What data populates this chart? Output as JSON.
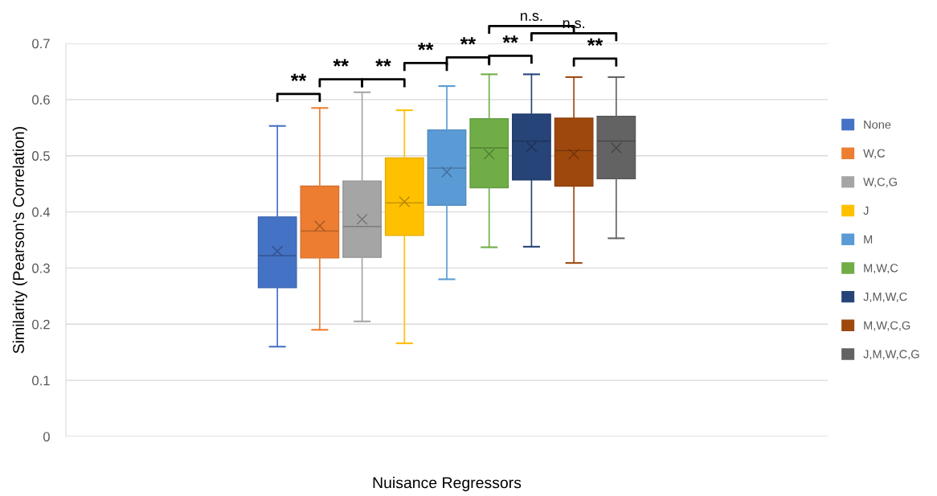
{
  "chart_data": {
    "type": "box",
    "xlabel": "Nuisance Regressors",
    "ylabel": "Similarity (Pearson's Correlation)",
    "categories": [
      null
    ],
    "ylim": [
      0,
      0.7
    ],
    "yticks": [
      0,
      0.1,
      0.2,
      0.3,
      0.4,
      0.5,
      0.6,
      0.7
    ],
    "grid": "y",
    "legend": "right",
    "tick_labels": "y",
    "series": [
      {
        "name": "None",
        "color": "#4472c4",
        "boxes": [
          {
            "low": 0.16,
            "q1": 0.265,
            "median": 0.322,
            "q3": 0.391,
            "high": 0.553,
            "mean": 0.33
          }
        ]
      },
      {
        "name": "W,C",
        "color": "#ed7d31",
        "boxes": [
          {
            "low": 0.19,
            "q1": 0.318,
            "median": 0.366,
            "q3": 0.446,
            "high": 0.585,
            "mean": 0.375
          }
        ]
      },
      {
        "name": "W,C,G",
        "color": "#a5a5a5",
        "boxes": [
          {
            "low": 0.205,
            "q1": 0.319,
            "median": 0.374,
            "q3": 0.455,
            "high": 0.613,
            "mean": 0.387
          }
        ]
      },
      {
        "name": "J",
        "color": "#ffc000",
        "boxes": [
          {
            "low": 0.166,
            "q1": 0.358,
            "median": 0.416,
            "q3": 0.496,
            "high": 0.581,
            "mean": 0.418
          }
        ]
      },
      {
        "name": "M",
        "color": "#5b9bd5",
        "boxes": [
          {
            "low": 0.28,
            "q1": 0.412,
            "median": 0.478,
            "q3": 0.546,
            "high": 0.624,
            "mean": 0.471
          }
        ]
      },
      {
        "name": "M,W,C",
        "color": "#70ad47",
        "boxes": [
          {
            "low": 0.337,
            "q1": 0.443,
            "median": 0.514,
            "q3": 0.566,
            "high": 0.645,
            "mean": 0.503
          }
        ]
      },
      {
        "name": "J,M,W,C",
        "color": "#264478",
        "boxes": [
          {
            "low": 0.338,
            "q1": 0.457,
            "median": 0.526,
            "q3": 0.574,
            "high": 0.645,
            "mean": 0.516
          }
        ]
      },
      {
        "name": "M,W,C,G",
        "color": "#9e480e",
        "boxes": [
          {
            "low": 0.309,
            "q1": 0.446,
            "median": 0.509,
            "q3": 0.567,
            "high": 0.64,
            "mean": 0.503
          }
        ]
      },
      {
        "name": "J,M,W,C,G",
        "color": "#636363",
        "boxes": [
          {
            "low": 0.353,
            "q1": 0.459,
            "median": 0.526,
            "q3": 0.57,
            "high": 0.64,
            "mean": 0.514
          }
        ]
      }
    ],
    "annotations": [
      "**",
      "**",
      "**",
      "**",
      "**",
      "**",
      "**",
      "n.s.",
      "n.s."
    ]
  }
}
